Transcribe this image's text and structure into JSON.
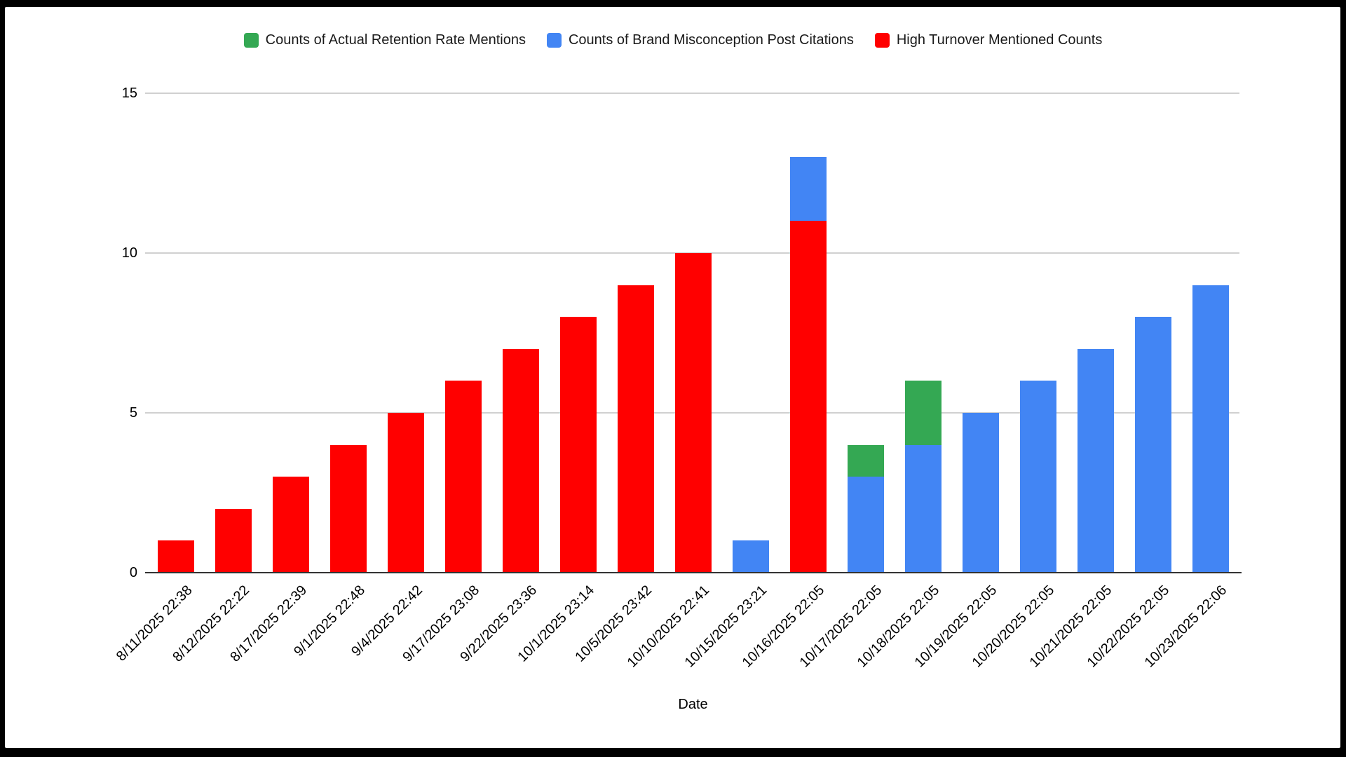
{
  "colors": {
    "green": "#34A853",
    "blue": "#4285F4",
    "red": "#FF0000",
    "grid": "#d0d0d0",
    "baseline": "#333333",
    "text": "#000000",
    "frame": "#000000",
    "card": "#ffffff"
  },
  "chart_data": {
    "type": "bar",
    "subtype": "stacked-column",
    "title": "",
    "xlabel": "Date",
    "ylabel": "",
    "ylim": [
      0,
      15
    ],
    "yticks": [
      0,
      5,
      10,
      15
    ],
    "grid": true,
    "legend_position": "top",
    "categories": [
      "8/11/2025 22:38",
      "8/12/2025 22:22",
      "8/17/2025 22:39",
      "9/1/2025 22:48",
      "9/4/2025 22:42",
      "9/17/2025 23:08",
      "9/22/2025 23:36",
      "10/1/2025 23:14",
      "10/5/2025 23:42",
      "10/10/2025 22:41",
      "10/15/2025 23:21",
      "10/16/2025 22:05",
      "10/17/2025 22:05",
      "10/18/2025 22:05",
      "10/19/2025 22:05",
      "10/20/2025 22:05",
      "10/21/2025 22:05",
      "10/22/2025 22:05",
      "10/23/2025 22:06"
    ],
    "series": [
      {
        "name": "Counts of Actual Retention Rate Mentions",
        "color_key": "green",
        "values": [
          0,
          0,
          0,
          0,
          0,
          0,
          0,
          0,
          0,
          0,
          0,
          0,
          1,
          2,
          0,
          0,
          0,
          0,
          0
        ]
      },
      {
        "name": "Counts of Brand Misconception Post Citations",
        "color_key": "blue",
        "values": [
          0,
          0,
          0,
          0,
          0,
          0,
          0,
          0,
          0,
          0,
          1,
          2,
          3,
          4,
          5,
          6,
          7,
          8,
          9
        ]
      },
      {
        "name": "High Turnover Mentioned Counts",
        "color_key": "red",
        "values": [
          1,
          2,
          3,
          4,
          5,
          6,
          7,
          8,
          9,
          10,
          0,
          11,
          0,
          0,
          0,
          0,
          0,
          0,
          0
        ]
      }
    ],
    "stack_order_bottom_to_top": [
      "High Turnover Mentioned Counts",
      "Counts of Brand Misconception Post Citations",
      "Counts of Actual Retention Rate Mentions"
    ]
  }
}
